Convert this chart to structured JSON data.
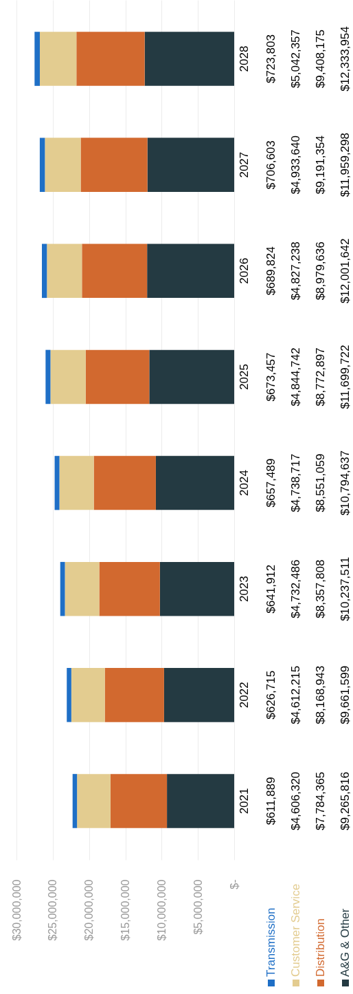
{
  "chart_data": {
    "type": "bar",
    "stacked": true,
    "orientation": "horizontal",
    "categories": [
      "2028",
      "2027",
      "2026",
      "2025",
      "2024",
      "2023",
      "2022",
      "2021"
    ],
    "xlim": [
      30000000,
      0
    ],
    "xticks": [
      {
        "value": 0,
        "label": "$-"
      },
      {
        "value": 5000000,
        "label": "$5,000,000"
      },
      {
        "value": 10000000,
        "label": "$10,000,000"
      },
      {
        "value": 15000000,
        "label": "$15,000,000"
      },
      {
        "value": 20000000,
        "label": "$20,000,000"
      },
      {
        "value": 25000000,
        "label": "$25,000,000"
      },
      {
        "value": 30000000,
        "label": "$30,000,000"
      }
    ],
    "grid": "x",
    "legend": "bottom",
    "series": [
      {
        "name": "A&G & Other",
        "color": "#243a42",
        "values": [
          12333954,
          11959298,
          12001642,
          11699722,
          10794637,
          10237511,
          9661599,
          9265816
        ],
        "value_labels": [
          "$12,333,954",
          "$11,959,298",
          "$12,001,642",
          "$11,699,722",
          "$10,794,637",
          "$10,237,511",
          "$9,661,599",
          "$9,265,816"
        ]
      },
      {
        "name": "Distribution",
        "color": "#d2692f",
        "values": [
          9408175,
          9191354,
          8979636,
          8772897,
          8551059,
          8357808,
          8168943,
          7784365
        ],
        "value_labels": [
          "$9,408,175",
          "$9,191,354",
          "$8,979,636",
          "$8,772,897",
          "$8,551,059",
          "$8,357,808",
          "$8,168,943",
          "$7,784,365"
        ]
      },
      {
        "name": "Customer Service",
        "color": "#e3cc90",
        "values": [
          5042357,
          4933640,
          4827238,
          4844742,
          4738717,
          4732486,
          4612215,
          4606320
        ],
        "value_labels": [
          "$5,042,357",
          "$4,933,640",
          "$4,827,238",
          "$4,844,742",
          "$4,738,717",
          "$4,732,486",
          "$4,612,215",
          "$4,606,320"
        ]
      },
      {
        "name": "Transmission",
        "color": "#1f6fc6",
        "values": [
          723803,
          706603,
          689824,
          673457,
          657489,
          641912,
          626715,
          611889
        ],
        "value_labels": [
          "$723,803",
          "$706,603",
          "$689,824",
          "$673,457",
          "$657,489",
          "$641,912",
          "$626,715",
          "$611,889"
        ]
      }
    ]
  }
}
